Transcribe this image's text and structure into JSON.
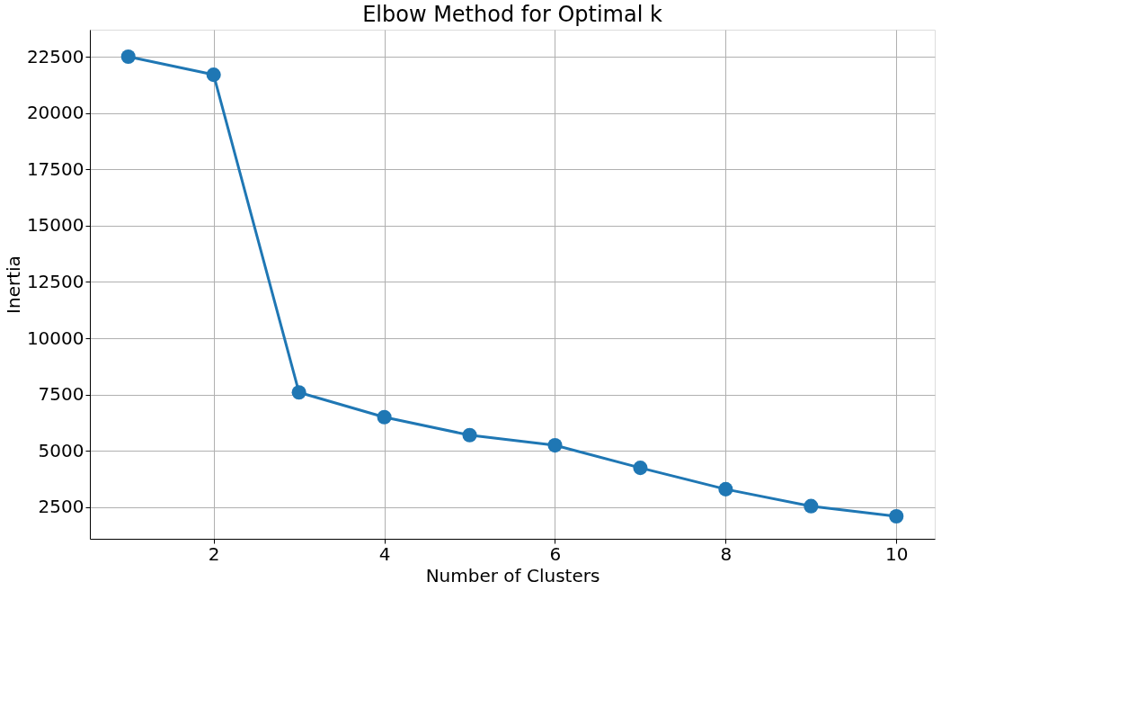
{
  "chart_data": {
    "type": "line",
    "title": "Elbow Method for Optimal k",
    "xlabel": "Number of Clusters",
    "ylabel": "Inertia",
    "x": [
      1,
      2,
      3,
      4,
      5,
      6,
      7,
      8,
      9,
      10
    ],
    "series": [
      {
        "color": "#1f77b4",
        "values": [
          22500,
          21700,
          7600,
          6500,
          5700,
          5250,
          4250,
          3300,
          2550,
          2100
        ]
      }
    ],
    "xlim": [
      0.55,
      10.45
    ],
    "xticks": [
      2,
      4,
      6,
      8,
      10
    ],
    "ylim": [
      1100,
      23700
    ],
    "yticks": [
      2500,
      5000,
      7500,
      10000,
      12500,
      15000,
      17500,
      20000,
      22500
    ],
    "grid": true,
    "marker": "circle",
    "line_style": "solid"
  }
}
